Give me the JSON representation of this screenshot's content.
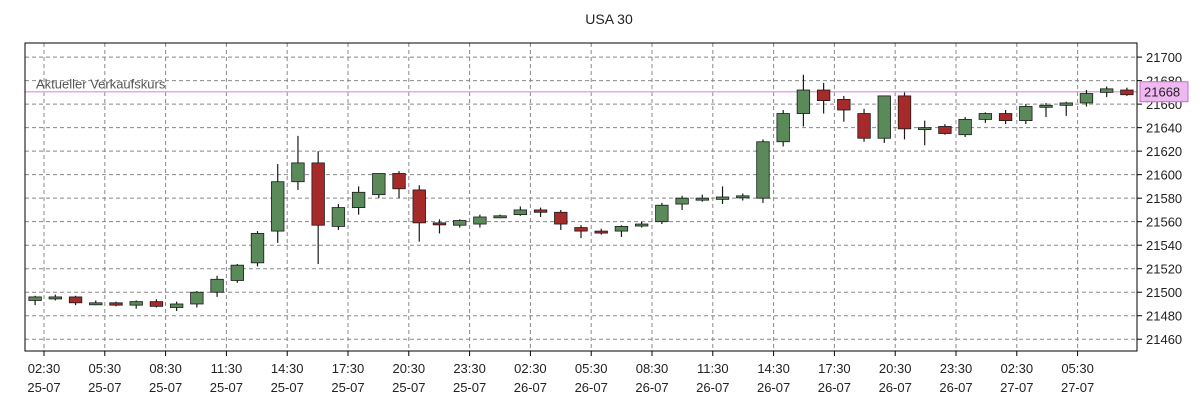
{
  "chart_data": {
    "type": "candlestick",
    "title": "USA 30",
    "ylim": [
      21450,
      21712
    ],
    "y_ticks": [
      21460,
      21480,
      21500,
      21520,
      21540,
      21560,
      21580,
      21600,
      21620,
      21640,
      21660,
      21680,
      21700
    ],
    "x_ticks": [
      {
        "time": "02:30",
        "date": "25-07"
      },
      {
        "time": "05:30",
        "date": "25-07"
      },
      {
        "time": "08:30",
        "date": "25-07"
      },
      {
        "time": "11:30",
        "date": "25-07"
      },
      {
        "time": "14:30",
        "date": "25-07"
      },
      {
        "time": "17:30",
        "date": "25-07"
      },
      {
        "time": "20:30",
        "date": "25-07"
      },
      {
        "time": "23:30",
        "date": "25-07"
      },
      {
        "time": "02:30",
        "date": "26-07"
      },
      {
        "time": "05:30",
        "date": "26-07"
      },
      {
        "time": "08:30",
        "date": "26-07"
      },
      {
        "time": "11:30",
        "date": "26-07"
      },
      {
        "time": "14:30",
        "date": "26-07"
      },
      {
        "time": "17:30",
        "date": "26-07"
      },
      {
        "time": "20:30",
        "date": "26-07"
      },
      {
        "time": "23:30",
        "date": "26-07"
      },
      {
        "time": "02:30",
        "date": "27-07"
      },
      {
        "time": "05:30",
        "date": "27-07"
      }
    ],
    "grid": true,
    "current_price": {
      "label": "Aktueller Verkaufskurs",
      "value": 21668,
      "value_label": "21668"
    },
    "colors": {
      "up": "#5a8a5a",
      "down": "#a62a2a",
      "current_line": "#e8a8e8",
      "current_box": "#f0b8f0",
      "grid": "#888888"
    },
    "candles": [
      {
        "o": 21493,
        "h": 21497,
        "l": 21489,
        "c": 21496
      },
      {
        "o": 21496,
        "h": 21498,
        "l": 21493,
        "c": 21496
      },
      {
        "o": 21496,
        "h": 21497,
        "l": 21489,
        "c": 21491
      },
      {
        "o": 21491,
        "h": 21493,
        "l": 21489,
        "c": 21491
      },
      {
        "o": 21491,
        "h": 21492,
        "l": 21488,
        "c": 21489
      },
      {
        "o": 21489,
        "h": 21493,
        "l": 21486,
        "c": 21492
      },
      {
        "o": 21492,
        "h": 21494,
        "l": 21487,
        "c": 21488
      },
      {
        "o": 21487,
        "h": 21492,
        "l": 21484,
        "c": 21490
      },
      {
        "o": 21490,
        "h": 21501,
        "l": 21487,
        "c": 21500
      },
      {
        "o": 21500,
        "h": 21514,
        "l": 21496,
        "c": 21511
      },
      {
        "o": 21510,
        "h": 21524,
        "l": 21508,
        "c": 21523
      },
      {
        "o": 21525,
        "h": 21552,
        "l": 21522,
        "c": 21550
      },
      {
        "o": 21552,
        "h": 21609,
        "l": 21542,
        "c": 21594
      },
      {
        "o": 21594,
        "h": 21633,
        "l": 21587,
        "c": 21610
      },
      {
        "o": 21610,
        "h": 21620,
        "l": 21524,
        "c": 21557
      },
      {
        "o": 21556,
        "h": 21575,
        "l": 21553,
        "c": 21572
      },
      {
        "o": 21572,
        "h": 21590,
        "l": 21566,
        "c": 21585
      },
      {
        "o": 21583,
        "h": 21601,
        "l": 21580,
        "c": 21601
      },
      {
        "o": 21601,
        "h": 21603,
        "l": 21580,
        "c": 21588
      },
      {
        "o": 21587,
        "h": 21591,
        "l": 21543,
        "c": 21559
      },
      {
        "o": 21559,
        "h": 21562,
        "l": 21550,
        "c": 21558
      },
      {
        "o": 21557,
        "h": 21562,
        "l": 21555,
        "c": 21561
      },
      {
        "o": 21558,
        "h": 21566,
        "l": 21555,
        "c": 21564
      },
      {
        "o": 21564,
        "h": 21566,
        "l": 21563,
        "c": 21565
      },
      {
        "o": 21566,
        "h": 21573,
        "l": 21565,
        "c": 21570
      },
      {
        "o": 21570,
        "h": 21572,
        "l": 21564,
        "c": 21568
      },
      {
        "o": 21568,
        "h": 21570,
        "l": 21553,
        "c": 21558
      },
      {
        "o": 21555,
        "h": 21557,
        "l": 21546,
        "c": 21552
      },
      {
        "o": 21552,
        "h": 21554,
        "l": 21549,
        "c": 21551
      },
      {
        "o": 21552,
        "h": 21557,
        "l": 21547,
        "c": 21556
      },
      {
        "o": 21557,
        "h": 21560,
        "l": 21555,
        "c": 21558
      },
      {
        "o": 21560,
        "h": 21576,
        "l": 21558,
        "c": 21574
      },
      {
        "o": 21575,
        "h": 21582,
        "l": 21570,
        "c": 21580
      },
      {
        "o": 21579,
        "h": 21583,
        "l": 21577,
        "c": 21580
      },
      {
        "o": 21579,
        "h": 21590,
        "l": 21575,
        "c": 21581
      },
      {
        "o": 21581,
        "h": 21584,
        "l": 21578,
        "c": 21582
      },
      {
        "o": 21580,
        "h": 21630,
        "l": 21576,
        "c": 21628
      },
      {
        "o": 21628,
        "h": 21655,
        "l": 21624,
        "c": 21652
      },
      {
        "o": 21652,
        "h": 21685,
        "l": 21641,
        "c": 21672
      },
      {
        "o": 21672,
        "h": 21678,
        "l": 21652,
        "c": 21663
      },
      {
        "o": 21664,
        "h": 21667,
        "l": 21645,
        "c": 21655
      },
      {
        "o": 21652,
        "h": 21656,
        "l": 21628,
        "c": 21631
      },
      {
        "o": 21631,
        "h": 21667,
        "l": 21627,
        "c": 21667
      },
      {
        "o": 21667,
        "h": 21670,
        "l": 21630,
        "c": 21639
      },
      {
        "o": 21639,
        "h": 21646,
        "l": 21625,
        "c": 21640
      },
      {
        "o": 21641,
        "h": 21643,
        "l": 21634,
        "c": 21635
      },
      {
        "o": 21634,
        "h": 21649,
        "l": 21632,
        "c": 21647
      },
      {
        "o": 21647,
        "h": 21653,
        "l": 21644,
        "c": 21652
      },
      {
        "o": 21652,
        "h": 21655,
        "l": 21643,
        "c": 21646
      },
      {
        "o": 21646,
        "h": 21660,
        "l": 21643,
        "c": 21658
      },
      {
        "o": 21658,
        "h": 21661,
        "l": 21649,
        "c": 21659
      },
      {
        "o": 21659,
        "h": 21662,
        "l": 21650,
        "c": 21661
      },
      {
        "o": 21661,
        "h": 21672,
        "l": 21658,
        "c": 21669
      },
      {
        "o": 21670,
        "h": 21675,
        "l": 21666,
        "c": 21673
      },
      {
        "o": 21672,
        "h": 21674,
        "l": 21667,
        "c": 21668
      }
    ]
  }
}
